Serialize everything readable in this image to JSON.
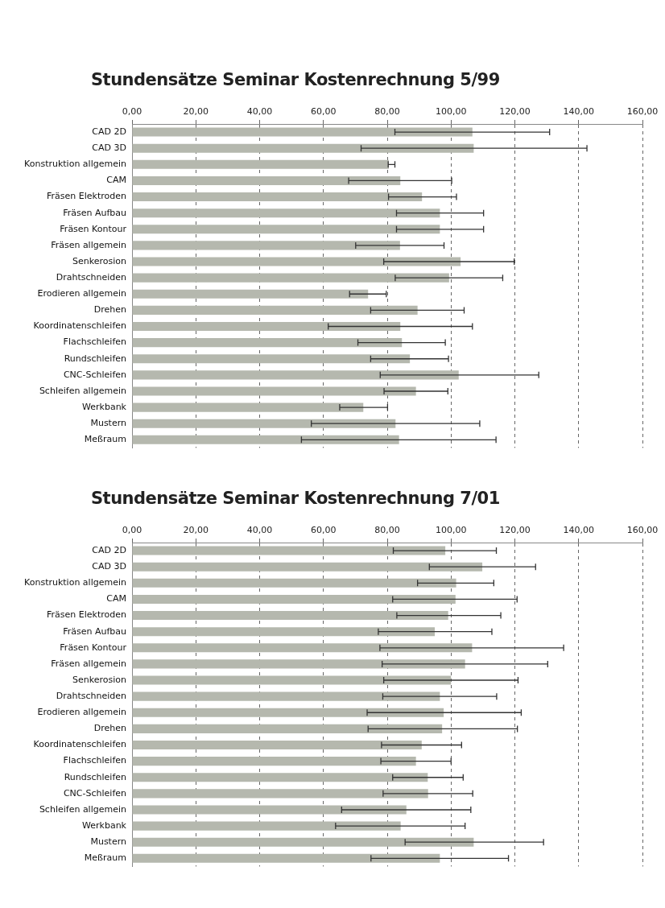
{
  "chart_data": [
    {
      "type": "bar",
      "orientation": "horizontal",
      "title": "Stundensätze Seminar Kostenrechnung 5/99",
      "categories": [
        "CAD 2D",
        "CAD 3D",
        "Konstruktion allgemein",
        "CAM",
        "Fräsen Elektroden",
        "Fräsen Aufbau",
        "Fräsen Kontour",
        "Fräsen allgemein",
        "Senkerosion",
        "Drahtschneiden",
        "Erodieren allgemein",
        "Drehen",
        "Koordinatenschleifen",
        "Flachschleifen",
        "Rundschleifen",
        "CNC-Schleifen",
        "Schleifen allgemein",
        "Werkbank",
        "Mustern",
        "Meßraum"
      ],
      "values": [
        106.7,
        107.1,
        80.5,
        84.1,
        90.9,
        96.5,
        96.5,
        84.0,
        103.0,
        99.4,
        74.0,
        89.5,
        84.1,
        84.6,
        87.1,
        102.4,
        89.0,
        72.5,
        82.6,
        83.7
      ],
      "errors": [
        [
          82.4,
          130.9
        ],
        [
          71.8,
          142.6
        ],
        [
          80.3,
          82.4
        ],
        [
          67.9,
          100.2
        ],
        [
          80.4,
          101.7
        ],
        [
          82.9,
          110.2
        ],
        [
          82.9,
          110.2
        ],
        [
          70.1,
          97.8
        ],
        [
          78.9,
          119.8
        ],
        [
          82.5,
          116.2
        ],
        [
          68.2,
          79.7
        ],
        [
          74.8,
          104.1
        ],
        [
          61.5,
          106.7
        ],
        [
          70.8,
          98.2
        ],
        [
          74.8,
          99.2
        ],
        [
          77.8,
          127.5
        ],
        [
          79.0,
          99.0
        ],
        [
          65.1,
          80.1
        ],
        [
          56.2,
          109.0
        ],
        [
          53.1,
          114.1
        ]
      ],
      "color": "#b5b8ae",
      "xlim": [
        0,
        160
      ],
      "xticks": [
        {
          "value": 0,
          "label": "0,00"
        },
        {
          "value": 20,
          "label": "20,00"
        },
        {
          "value": 40,
          "label": "40,00"
        },
        {
          "value": 60,
          "label": "60,00"
        },
        {
          "value": 80,
          "label": "80,00"
        },
        {
          "value": 100,
          "label": "100,00"
        },
        {
          "value": 120,
          "label": "120,00"
        },
        {
          "value": 140,
          "label": "140,00"
        },
        {
          "value": 160,
          "label": "160,00"
        }
      ],
      "grid": "x"
    },
    {
      "type": "bar",
      "orientation": "horizontal",
      "title": "Stundensätze Seminar Kostenrechnung 7/01",
      "categories": [
        "CAD 2D",
        "CAD 3D",
        "Konstruktion allgemein",
        "CAM",
        "Fräsen Elektroden",
        "Fräsen Aufbau",
        "Fräsen Kontour",
        "Fräsen allgemein",
        "Senkerosion",
        "Drahtschneiden",
        "Erodieren allgemein",
        "Drehen",
        "Koordinatenschleifen",
        "Flachschleifen",
        "Rundschleifen",
        "CNC-Schleifen",
        "Schleifen allgemein",
        "Werkbank",
        "Mustern",
        "Meßraum"
      ],
      "values": [
        98.2,
        109.8,
        101.6,
        101.4,
        99.1,
        94.9,
        106.6,
        104.4,
        100.0,
        96.5,
        97.7,
        97.2,
        90.8,
        89.0,
        92.7,
        92.8,
        86.0,
        84.2,
        107.1,
        96.5
      ],
      "errors": [
        [
          81.9,
          114.2
        ],
        [
          93.2,
          126.5
        ],
        [
          89.5,
          113.4
        ],
        [
          81.7,
          120.7
        ],
        [
          83.0,
          115.6
        ],
        [
          77.2,
          112.8
        ],
        [
          77.7,
          135.3
        ],
        [
          78.4,
          130.3
        ],
        [
          78.9,
          121.0
        ],
        [
          78.6,
          114.3
        ],
        [
          73.7,
          122.0
        ],
        [
          74.0,
          120.8
        ],
        [
          78.2,
          103.3
        ],
        [
          78.0,
          100.0
        ],
        [
          81.7,
          103.8
        ],
        [
          78.7,
          106.8
        ],
        [
          65.7,
          106.2
        ],
        [
          63.8,
          104.4
        ],
        [
          85.6,
          129.0
        ],
        [
          74.9,
          118.0
        ]
      ],
      "color": "#b5b8ae",
      "xlim": [
        0,
        160
      ],
      "xticks": [
        {
          "value": 0,
          "label": "0,00"
        },
        {
          "value": 20,
          "label": "20,00"
        },
        {
          "value": 40,
          "label": "40,00"
        },
        {
          "value": 60,
          "label": "60,00"
        },
        {
          "value": 80,
          "label": "80,00"
        },
        {
          "value": 100,
          "label": "100,00"
        },
        {
          "value": 120,
          "label": "120,00"
        },
        {
          "value": 140,
          "label": "140,00"
        },
        {
          "value": 160,
          "label": "160,00"
        }
      ],
      "grid": "x"
    }
  ]
}
